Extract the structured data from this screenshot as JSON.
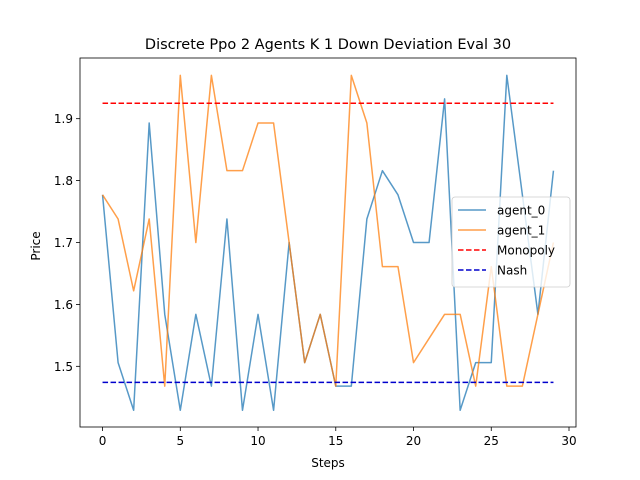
{
  "chart_data": {
    "type": "line",
    "title": "Discrete Ppo 2 Agents K 1 Down Deviation Eval 30",
    "xlabel": "Steps",
    "ylabel": "Price",
    "xlim": [
      -1.45,
      30.45
    ],
    "ylim": [
      1.402,
      1.998
    ],
    "xticks": [
      0,
      5,
      10,
      15,
      20,
      25,
      30
    ],
    "yticks": [
      1.5,
      1.6,
      1.7,
      1.8,
      1.9
    ],
    "xtick_labels": [
      "0",
      "5",
      "10",
      "15",
      "20",
      "25",
      "30"
    ],
    "ytick_labels": [
      "1.5",
      "1.6",
      "1.7",
      "1.8",
      "1.9"
    ],
    "grid": false,
    "legend_position": "center-right",
    "x": [
      0,
      1,
      2,
      3,
      4,
      5,
      6,
      7,
      8,
      9,
      10,
      11,
      12,
      13,
      14,
      15,
      16,
      17,
      18,
      19,
      20,
      21,
      22,
      23,
      24,
      25,
      26,
      27,
      28,
      29
    ],
    "series": [
      {
        "name": "agent_0",
        "color": "#1f77b4",
        "style": "solid",
        "values": [
          1.777,
          1.506,
          1.429,
          1.893,
          1.584,
          1.429,
          1.584,
          1.468,
          1.738,
          1.429,
          1.584,
          1.429,
          1.7,
          1.506,
          1.584,
          1.468,
          1.468,
          1.738,
          1.816,
          1.777,
          1.7,
          1.7,
          1.932,
          1.429,
          1.506,
          1.506,
          1.97,
          1.777,
          1.584,
          1.816
        ]
      },
      {
        "name": "agent_1",
        "color": "#ff7f0e",
        "style": "solid",
        "values": [
          1.777,
          1.738,
          1.622,
          1.738,
          1.468,
          1.97,
          1.7,
          1.97,
          1.816,
          1.816,
          1.893,
          1.893,
          1.7,
          1.506,
          1.584,
          1.468,
          1.97,
          1.893,
          1.661,
          1.661,
          1.506,
          1.545,
          1.584,
          1.584,
          1.468,
          1.661,
          1.468,
          1.468,
          1.584,
          1.7
        ]
      },
      {
        "name": "Monopoly",
        "color": "#ff0000",
        "style": "dashed",
        "x_range": [
          0,
          29
        ],
        "value": 1.925
      },
      {
        "name": "Nash",
        "color": "#0000cc",
        "style": "dashed",
        "x_range": [
          0,
          29
        ],
        "value": 1.474
      }
    ]
  }
}
